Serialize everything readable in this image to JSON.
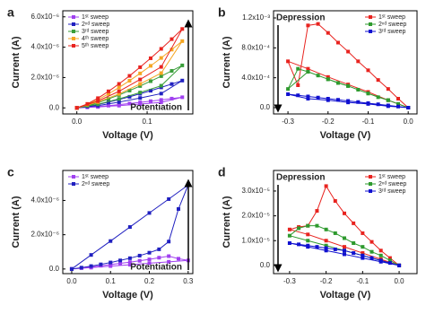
{
  "chart_data": [
    {
      "type": "line",
      "panel_label": "a",
      "xlabel": "Voltage (V)",
      "ylabel": "Current (A)",
      "xlim": [
        -0.02,
        0.165
      ],
      "ylim": [
        -4e-07,
        6.4e-06
      ],
      "xticks": [
        {
          "value": 0,
          "label": "0.0"
        },
        {
          "value": 0.1,
          "label": "0.1"
        }
      ],
      "yticks": [
        {
          "value": 0,
          "label": "0.0"
        },
        {
          "value": 2e-06,
          "label": "2.0x10⁻⁶"
        },
        {
          "value": 4e-06,
          "label": "4.0x10⁻⁶"
        },
        {
          "value": 6e-06,
          "label": "6.0x10⁻⁶"
        }
      ],
      "legend": "upper left",
      "annotation": {
        "text": "Potentiation",
        "corner": "lower right"
      },
      "x": [
        0,
        0.015,
        0.03,
        0.045,
        0.06,
        0.075,
        0.09,
        0.105,
        0.12,
        0.135,
        0.15,
        0.12,
        0.09,
        0.06,
        0.03,
        0
      ],
      "series": [
        {
          "name": "1ˢᵗ sweep",
          "color": "#a040f0",
          "values": [
            0,
            3.5e-08,
            8.6e-08,
            1.46e-07,
            2.13e-07,
            2.84e-07,
            3.61e-07,
            4.4e-07,
            5.24e-07,
            6.1e-07,
            7e-07,
            3.64e-07,
            2.52e-07,
            1.47e-07,
            6e-08,
            0
          ]
        },
        {
          "name": "2ⁿᵈ sweep",
          "color": "#2020c0",
          "values": [
            0,
            9e-08,
            2.2e-07,
            3.8e-07,
            5.5e-07,
            7.3e-07,
            9.3e-07,
            1.13e-06,
            1.35e-06,
            1.57e-06,
            1.8e-06,
            9.4e-07,
            6.5e-07,
            3.8e-07,
            1.5e-07,
            0
          ]
        },
        {
          "name": "3ʳᵈ sweep",
          "color": "#3a9e3a",
          "values": [
            0,
            1.4e-07,
            3.4e-07,
            5.9e-07,
            8.5e-07,
            1.14e-06,
            1.44e-06,
            1.76e-06,
            2.09e-06,
            2.44e-06,
            2.8e-06,
            1.46e-06,
            1.01e-06,
            5.9e-07,
            2.4e-07,
            0
          ]
        },
        {
          "name": "4ᵗʰ sweep",
          "color": "#f5a623",
          "values": [
            0,
            2.2e-07,
            5.4e-07,
            9.2e-07,
            1.34e-06,
            1.79e-06,
            2.27e-06,
            2.77e-06,
            3.29e-06,
            3.84e-06,
            4.4e-06,
            2.29e-06,
            1.58e-06,
            9.2e-07,
            3.8e-07,
            0
          ]
        },
        {
          "name": "5ᵗʰ sweep",
          "color": "#e8231f",
          "values": [
            0,
            2.6e-07,
            6.4e-07,
            1.09e-06,
            1.58e-06,
            2.11e-06,
            2.68e-06,
            3.27e-06,
            3.89e-06,
            4.53e-06,
            5.2e-06,
            2.7e-06,
            1.87e-06,
            1.09e-06,
            4.5e-07,
            0
          ]
        }
      ]
    },
    {
      "type": "line",
      "panel_label": "b",
      "xlabel": "Voltage (V)",
      "ylabel": "Current (A)",
      "xlim": [
        -0.336,
        0.022
      ],
      "ylim": [
        -8.4e-05,
        0.001296
      ],
      "xticks": [
        -0.3,
        -0.2,
        -0.1,
        {
          "value": 0,
          "label": "0.0"
        }
      ],
      "yticks": [
        {
          "value": 0,
          "label": "0.0"
        },
        {
          "value": 0.0004,
          "label": "4.0x10⁻⁴"
        },
        {
          "value": 0.0008,
          "label": "8.0x10⁻⁴"
        },
        {
          "value": 0.0012,
          "label": "1.2x10⁻³"
        }
      ],
      "legend": "upper right",
      "annotation": {
        "text": "Depression",
        "corner": "upper left"
      },
      "x": [
        0,
        -0.025,
        -0.05,
        -0.075,
        -0.1,
        -0.125,
        -0.15,
        -0.175,
        -0.2,
        -0.225,
        -0.25,
        -0.275,
        -0.3,
        -0.25,
        -0.2,
        -0.15,
        -0.1,
        -0.05,
        0
      ],
      "series": [
        {
          "name": "1ˢᵗ sweep",
          "color": "#e8231f",
          "values": [
            0,
            0.00012,
            0.00025,
            0.00037,
            0.0005,
            0.00062,
            0.00075,
            0.00087,
            0.001,
            0.00112,
            0.0011,
            0.0003,
            0.00062,
            0.00052,
            0.00041,
            0.00031,
            0.00021,
            0.0001,
            0
          ]
        },
        {
          "name": "2ⁿᵈ sweep",
          "color": "#2e9a2e",
          "values": [
            0,
            5e-05,
            0.0001,
            0.00014,
            0.00019,
            0.00024,
            0.00029,
            0.00033,
            0.00038,
            0.00043,
            0.00048,
            0.00052,
            0.00025,
            0.00048,
            0.00038,
            0.00029,
            0.00019,
            0.0001,
            0
          ]
        },
        {
          "name": "3ʳᵈ sweep",
          "color": "#1010d0",
          "values": [
            0,
            1.5e-05,
            3e-05,
            4.5e-05,
            6e-05,
            7.5e-05,
            9e-05,
            0.000105,
            0.00012,
            0.000135,
            0.00015,
            0.000165,
            0.00018,
            0.00012,
            0.0001,
            7e-05,
            5e-05,
            2e-05,
            0
          ]
        }
      ]
    },
    {
      "type": "line",
      "panel_label": "c",
      "xlabel": "Voltage (V)",
      "ylabel": "Current (A)",
      "xlim": [
        -0.023,
        0.312
      ],
      "ylim": [
        -2.7e-07,
        5.75e-06
      ],
      "xticks": [
        {
          "value": 0,
          "label": "0.0"
        },
        0.1,
        0.2,
        0.3
      ],
      "yticks": [
        {
          "value": 0,
          "label": "0.0"
        },
        {
          "value": 2e-06,
          "label": "2.0x10⁻⁶"
        },
        {
          "value": 4e-06,
          "label": "4.0x10⁻⁶"
        }
      ],
      "legend": "upper left",
      "annotation": {
        "text": "Potentiation",
        "corner": "lower right"
      },
      "x": [
        0,
        0.025,
        0.05,
        0.075,
        0.1,
        0.125,
        0.15,
        0.175,
        0.2,
        0.225,
        0.25,
        0.275,
        0.3,
        0.25,
        0.2,
        0.15,
        0.1,
        0.05,
        0
      ],
      "series": [
        {
          "name": "1ˢᵗ sweep",
          "color": "#a040f0",
          "values": [
            0,
            5e-08,
            1.2e-07,
            1.9e-07,
            2.6e-07,
            3.3e-07,
            4e-07,
            4.8e-07,
            5.6e-07,
            6.6e-07,
            7.5e-07,
            6e-07,
            5e-07,
            4.2e-07,
            3.4e-07,
            2.5e-07,
            1.7e-07,
            8e-08,
            0
          ]
        },
        {
          "name": "2ⁿᵈ sweep",
          "color": "#2020c0",
          "values": [
            0,
            8e-08,
            1.7e-07,
            2.7e-07,
            3.8e-07,
            5e-07,
            6.3e-07,
            7.8e-07,
            9.5e-07,
            1.15e-06,
            1.6e-06,
            3.5e-06,
            4.9e-06,
            4.08e-06,
            3.27e-06,
            2.45e-06,
            1.63e-06,
            8.2e-07,
            0
          ]
        }
      ]
    },
    {
      "type": "line",
      "panel_label": "d",
      "xlabel": "Voltage (V)",
      "ylabel": "Current (A)",
      "xlim": [
        -0.344,
        0.049
      ],
      "ylim": [
        -3.3e-06,
        3.83e-05
      ],
      "xticks": [
        -0.3,
        -0.2,
        -0.1,
        {
          "value": 0,
          "label": "0.0"
        }
      ],
      "yticks": [
        {
          "value": 0,
          "label": "0.0"
        },
        {
          "value": 1e-05,
          "label": "1.0x10⁻⁵"
        },
        {
          "value": 2e-05,
          "label": "2.0x10⁻⁵"
        },
        {
          "value": 3e-05,
          "label": "3.0x10⁻⁵"
        }
      ],
      "legend": "upper right",
      "annotation": {
        "text": "Depression",
        "corner": "upper left"
      },
      "x": [
        0,
        -0.025,
        -0.05,
        -0.075,
        -0.1,
        -0.125,
        -0.15,
        -0.175,
        -0.2,
        -0.225,
        -0.25,
        -0.275,
        -0.3,
        -0.25,
        -0.2,
        -0.15,
        -0.1,
        -0.05,
        0
      ],
      "series": [
        {
          "name": "1ˢᵗ sweep",
          "color": "#e8231f",
          "values": [
            0,
            3e-06,
            6e-06,
            9.5e-06,
            1.3e-05,
            1.7e-05,
            2.1e-05,
            2.6e-05,
            3.2e-05,
            2.2e-05,
            1.6e-05,
            1.55e-05,
            1.45e-05,
            1.25e-05,
            1e-05,
            7.5e-06,
            5e-06,
            2.5e-06,
            0
          ]
        },
        {
          "name": "2ⁿᵈ sweep",
          "color": "#2e9a2e",
          "values": [
            0,
            2e-06,
            4e-06,
            5.5e-06,
            7.5e-06,
            9e-06,
            1.1e-05,
            1.3e-05,
            1.45e-05,
            1.6e-05,
            1.6e-05,
            1.5e-05,
            1.2e-05,
            1e-05,
            8e-06,
            6e-06,
            4e-06,
            2e-06,
            0
          ]
        },
        {
          "name": "3ʳᵈ sweep",
          "color": "#1010d0",
          "values": [
            0,
            1e-06,
            2e-06,
            3e-06,
            4e-06,
            5e-06,
            6e-06,
            6.5e-06,
            7e-06,
            7.5e-06,
            8e-06,
            8.5e-06,
            9e-06,
            7.5e-06,
            6e-06,
            4.5e-06,
            3e-06,
            1.5e-06,
            0
          ]
        }
      ]
    }
  ]
}
